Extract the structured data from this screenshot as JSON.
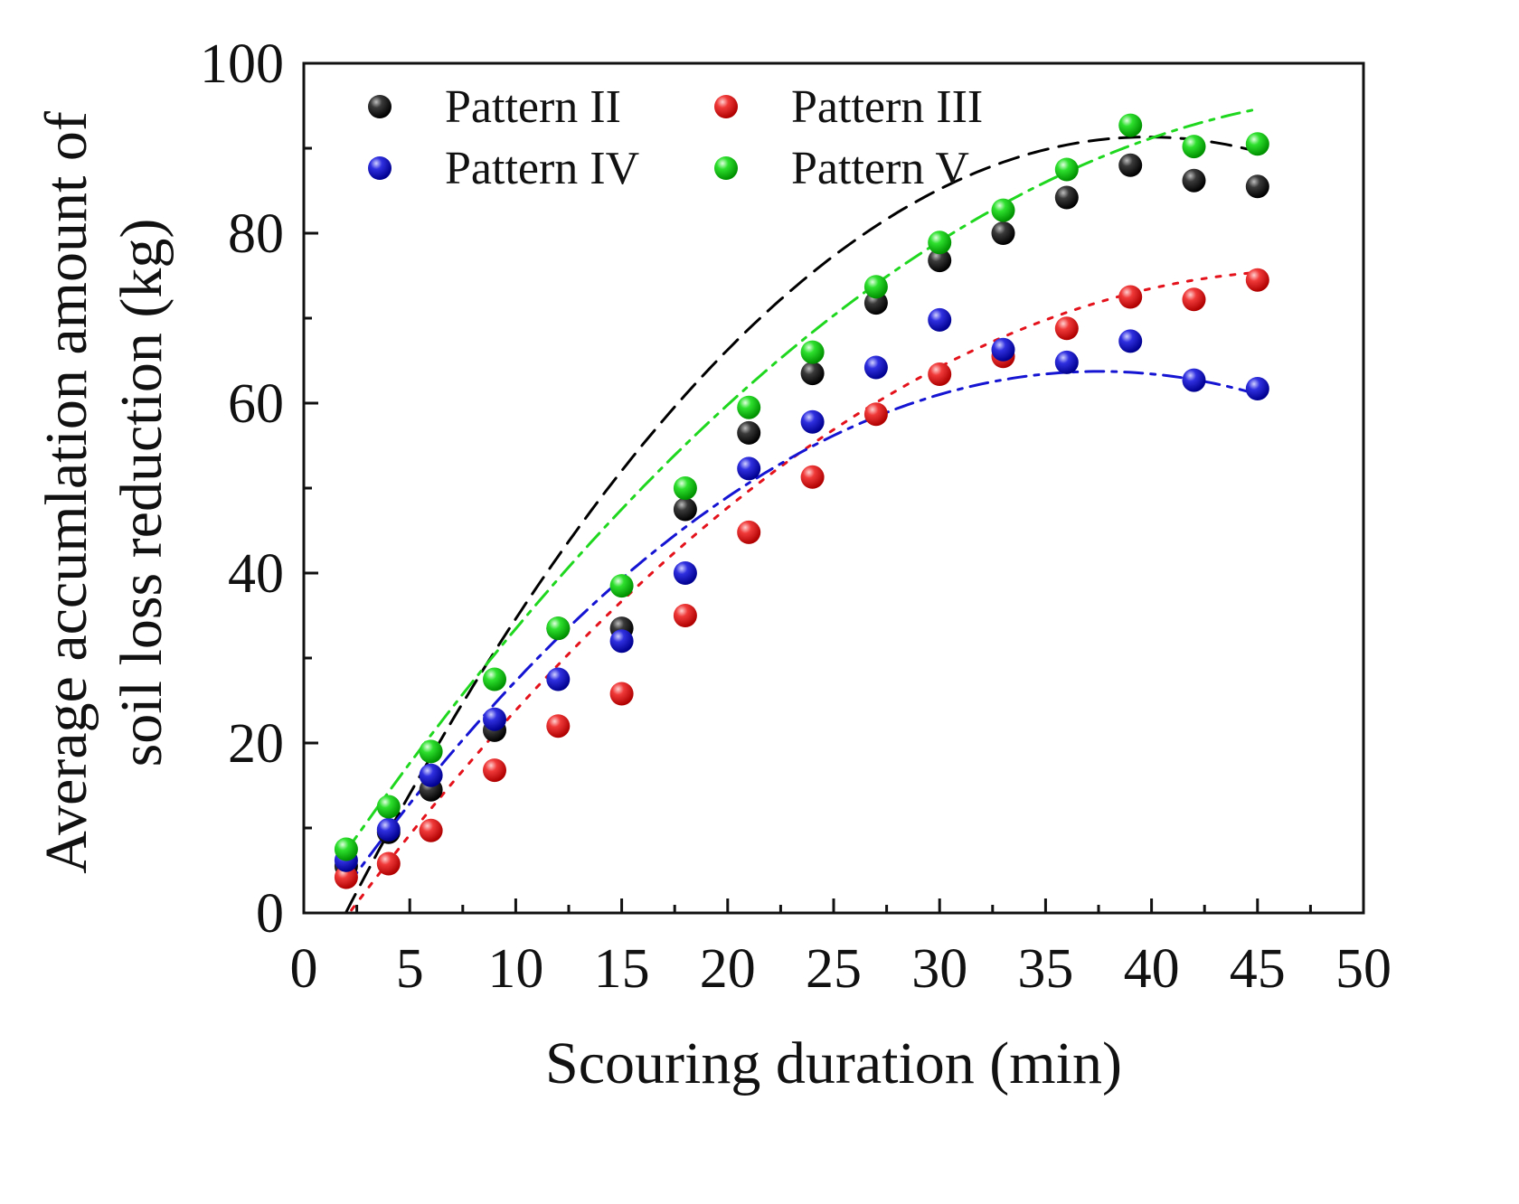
{
  "chart_data": {
    "type": "scatter",
    "xlabel": "Scouring duration (min)",
    "ylabel_lines": [
      "Average accumlation amount of",
      "soil loss reduction (kg)"
    ],
    "xlim": [
      0,
      50
    ],
    "ylim": [
      0,
      100
    ],
    "x_ticks": [
      0,
      5,
      10,
      15,
      20,
      25,
      30,
      35,
      40,
      45,
      50
    ],
    "y_ticks": [
      0,
      20,
      40,
      60,
      80,
      100
    ],
    "x_minor_step": 2.5,
    "y_minor_step": 10,
    "grid": false,
    "legend_position": "top-left",
    "x": [
      2,
      4,
      6,
      9,
      12,
      15,
      18,
      21,
      24,
      27,
      30,
      33,
      36,
      39,
      42,
      45
    ],
    "series": [
      {
        "name": "Pattern II",
        "color": "#000000",
        "fit_style": "dashed",
        "values": [
          5.5,
          9.5,
          14.5,
          21.5,
          33.5,
          33.5,
          47.5,
          56.5,
          63.5,
          71.8,
          76.8,
          80.0,
          84.2,
          88.0,
          86.2,
          85.5
        ],
        "fit": {
          "type": "polynomial",
          "coefficients": [
            -9.8,
            5.08,
            -0.0638
          ],
          "range": [
            2,
            45
          ]
        }
      },
      {
        "name": "Pattern III",
        "color": "#e3121b",
        "fit_style": "dotted",
        "values": [
          4.2,
          5.8,
          9.7,
          16.8,
          22.0,
          25.8,
          35.0,
          44.8,
          51.3,
          58.7,
          63.4,
          65.5,
          68.8,
          72.5,
          72.2,
          74.5
        ],
        "fit": {
          "type": "polynomial",
          "coefficients": [
            -7.3,
            3.48,
            -0.0365
          ],
          "range": [
            2,
            45
          ]
        }
      },
      {
        "name": "Pattern IV",
        "color": "#1414d2",
        "fit_style": "dash-dot",
        "values": [
          6.2,
          9.8,
          16.2,
          22.8,
          27.5,
          32.0,
          40.0,
          52.3,
          57.8,
          64.2,
          69.8,
          66.3,
          64.8,
          67.3,
          62.7,
          61.7
        ],
        "fit": {
          "type": "polynomial",
          "coefficients": [
            -4.0,
            3.61,
            -0.0481
          ],
          "range": [
            2,
            45
          ]
        }
      },
      {
        "name": "Pattern V",
        "color": "#1ed71e",
        "fit_style": "dash-dot",
        "values": [
          7.5,
          12.5,
          19.0,
          27.5,
          33.5,
          38.5,
          50.0,
          59.5,
          66.0,
          73.7,
          78.9,
          82.7,
          87.5,
          92.7,
          90.2,
          90.5
        ],
        "fit": {
          "type": "polynomial",
          "coefficients": [
            0.0,
            3.7,
            -0.0355
          ],
          "range": [
            2,
            45
          ]
        }
      }
    ]
  }
}
